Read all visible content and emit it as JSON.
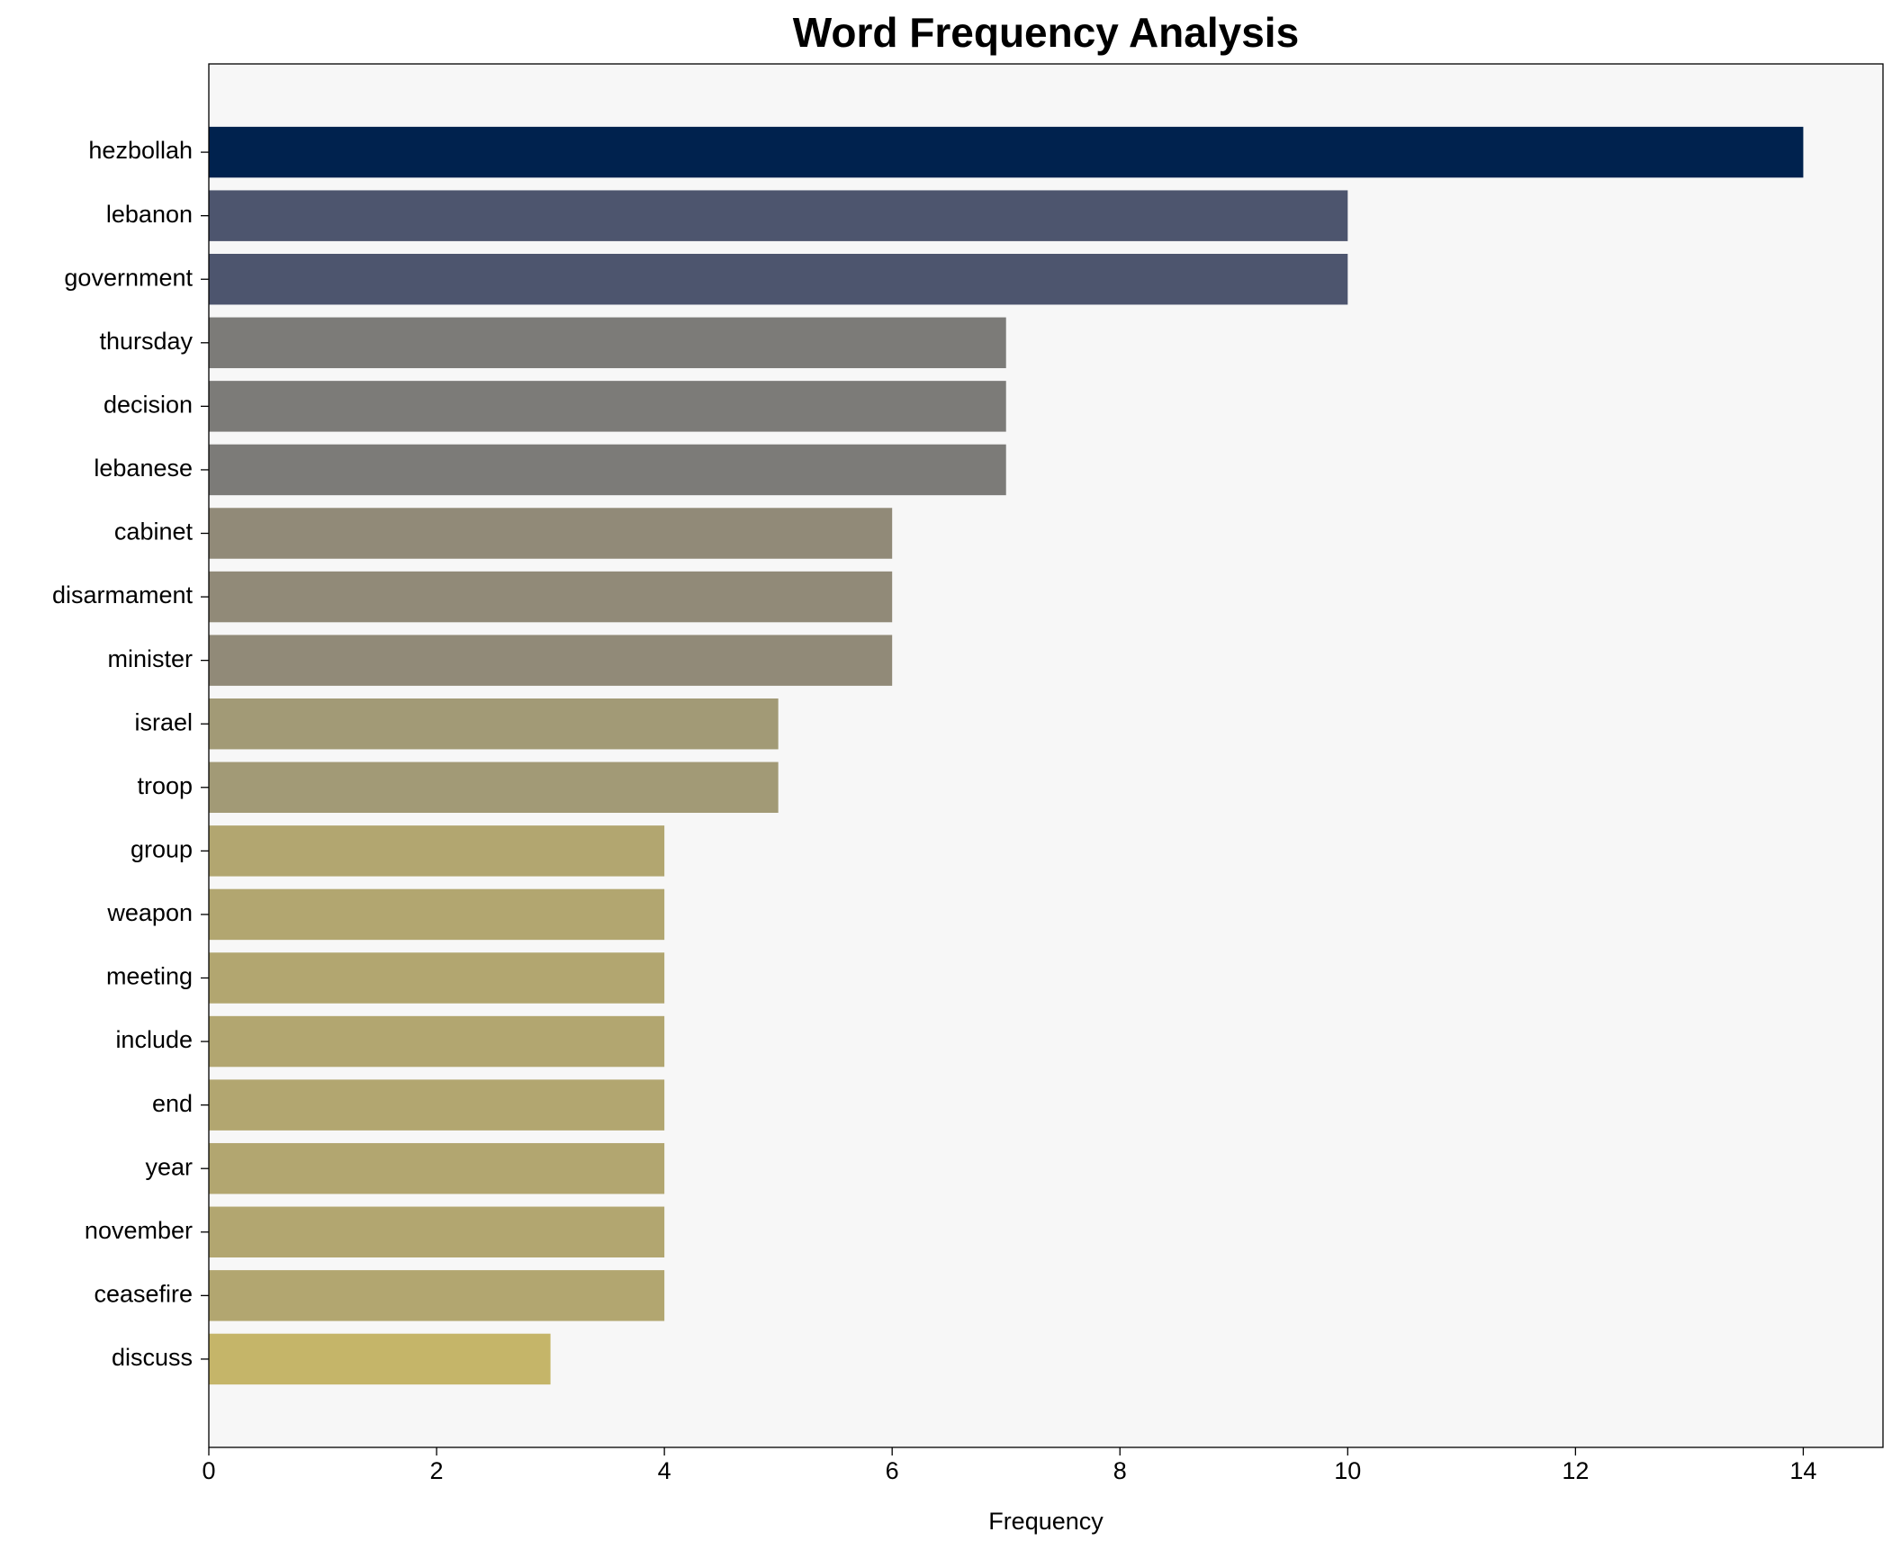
{
  "chart_data": {
    "type": "barh",
    "title": "Word Frequency Analysis",
    "x_label": "Frequency",
    "categories": [
      "hezbollah",
      "lebanon",
      "government",
      "thursday",
      "decision",
      "lebanese",
      "cabinet",
      "disarmament",
      "minister",
      "israel",
      "troop",
      "group",
      "weapon",
      "meeting",
      "include",
      "end",
      "year",
      "november",
      "ceasefire",
      "discuss"
    ],
    "values": [
      14,
      10,
      10,
      7,
      7,
      7,
      6,
      6,
      6,
      5,
      5,
      4,
      4,
      4,
      4,
      4,
      4,
      4,
      4,
      3
    ],
    "colors": [
      "#00224e",
      "#4d556e",
      "#4d556e",
      "#7c7b78",
      "#7c7b78",
      "#7c7b78",
      "#918a78",
      "#918a78",
      "#918a78",
      "#a29a76",
      "#a29a76",
      "#b2a670",
      "#b2a670",
      "#b2a670",
      "#b2a670",
      "#b2a670",
      "#b2a670",
      "#b2a670",
      "#b2a670",
      "#c5b569"
    ],
    "xlim": [
      0,
      14.7
    ],
    "xticks": [
      0,
      2,
      4,
      6,
      8,
      10,
      12,
      14
    ]
  }
}
